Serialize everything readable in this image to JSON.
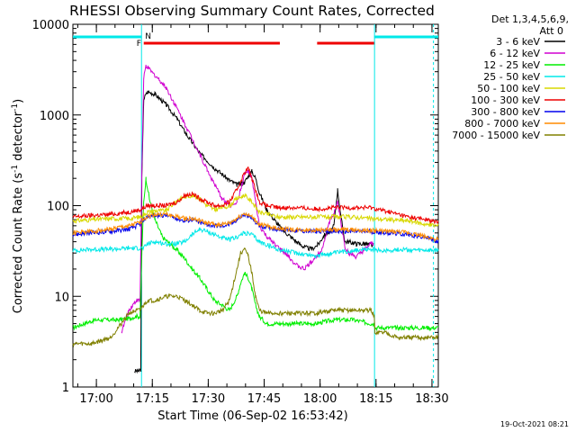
{
  "chart_data": {
    "type": "line",
    "title": "RHESSI Observing Summary Count Rates, Corrected",
    "xlabel": "Start Time (06-Sep-02 16:53:42)",
    "ylabel_main": "Corrected Count Rate (s",
    "ylabel_sup1": "-1",
    "ylabel_mid": " detector",
    "ylabel_sup2": "-1",
    "ylabel_end": ")",
    "x_ticks": [
      "17:00",
      "17:15",
      "17:30",
      "17:45",
      "18:00",
      "18:15",
      "18:30"
    ],
    "x_tick_minutes": [
      6.3,
      21.3,
      36.3,
      51.3,
      66.3,
      81.3,
      96.3
    ],
    "xlim_minutes": [
      0,
      98
    ],
    "y_scale": "log",
    "ylim": [
      1,
      10000
    ],
    "y_ticks": [
      {
        "value": 1,
        "label": "1"
      },
      {
        "value": 10,
        "label": "10"
      },
      {
        "value": 100,
        "label": "100"
      },
      {
        "value": 1000,
        "label": "1000"
      },
      {
        "value": 10000,
        "label": "10000"
      }
    ],
    "legend_header": [
      "Det 1,3,4,5,6,9,",
      "Att 0"
    ],
    "legend_position": "right",
    "timestamp": "19-Oct-2021 08:21",
    "attenuator_label": "N",
    "flare_label": "F",
    "cyan_bars": [
      [
        0,
        18.5
      ],
      [
        80.8,
        98
      ]
    ],
    "red_flare_bars": [
      [
        19,
        55.5
      ],
      [
        65.5,
        81
      ]
    ],
    "vertical_lines_minutes": [
      18.4,
      80.9,
      96.7
    ],
    "series": [
      {
        "name": "3 - 6 keV",
        "color": "#000000",
        "x": [
          0,
          16,
          16.5,
          17,
          17.7,
          18.2,
          18.5,
          19,
          20,
          22,
          25,
          28,
          30,
          34,
          38,
          42,
          44,
          46,
          47,
          48,
          49,
          50,
          52,
          54,
          56,
          58,
          60,
          62,
          64,
          66,
          67,
          68,
          69,
          70,
          71,
          72,
          73,
          74,
          76,
          78,
          80,
          80.7,
          80.9
        ],
        "y": [
          null,
          null,
          1.5,
          1.5,
          1.5,
          1.5,
          200,
          1500,
          1800,
          1700,
          1300,
          900,
          650,
          380,
          260,
          190,
          170,
          180,
          210,
          240,
          200,
          140,
          90,
          70,
          55,
          47,
          40,
          35,
          33,
          38,
          45,
          50,
          50,
          60,
          150,
          70,
          40,
          40,
          38,
          38,
          37,
          36,
          null
        ]
      },
      {
        "name": "6 - 12 keV",
        "color": "#d000d0",
        "x": [
          0,
          12.5,
          13,
          15,
          16,
          17,
          18,
          18.5,
          19,
          19.6,
          21,
          23,
          25,
          27,
          30,
          33,
          36,
          38,
          40,
          42,
          44,
          45,
          46,
          47,
          48,
          49,
          50,
          52,
          54,
          56,
          58,
          60,
          62,
          64,
          66,
          67,
          68,
          69,
          70,
          71,
          72,
          73,
          74,
          76,
          78,
          80,
          80.7,
          80.9
        ],
        "y": [
          null,
          null,
          4,
          7,
          8,
          9,
          9,
          250,
          2500,
          3500,
          3000,
          2500,
          2000,
          1400,
          800,
          450,
          250,
          170,
          120,
          100,
          110,
          150,
          220,
          240,
          200,
          110,
          60,
          45,
          38,
          32,
          27,
          22,
          20,
          24,
          30,
          35,
          50,
          70,
          80,
          110,
          60,
          35,
          30,
          27,
          32,
          38,
          38,
          null
        ]
      },
      {
        "name": "12 - 25 keV",
        "color": "#00ee00",
        "x": [
          0,
          3,
          6,
          9,
          12,
          15,
          17,
          18,
          18.5,
          19,
          19.6,
          20.5,
          22,
          24,
          26,
          28,
          30,
          32,
          34,
          36,
          38,
          40,
          42,
          44,
          45,
          46,
          47,
          48,
          49,
          50,
          52,
          55,
          60,
          65,
          70,
          75,
          80,
          80.8,
          81,
          84,
          87,
          90,
          95,
          98
        ],
        "y": [
          4.5,
          5,
          5.5,
          5.5,
          5.5,
          5.7,
          6,
          6,
          30,
          110,
          200,
          120,
          70,
          45,
          38,
          32,
          26,
          20,
          16,
          12,
          9,
          8,
          7,
          10,
          14,
          18,
          16,
          12,
          8,
          6,
          5,
          5,
          5,
          5,
          5.5,
          5.5,
          5,
          5,
          4.5,
          4.5,
          4.5,
          4.5,
          4.5,
          4.5
        ]
      },
      {
        "name": "25 - 50 keV",
        "color": "#00e8e8",
        "x": [
          0,
          5,
          10,
          15,
          18,
          19,
          20,
          22,
          25,
          28,
          30,
          32,
          34,
          36,
          38,
          40,
          42,
          44,
          46,
          48,
          50,
          55,
          60,
          65,
          70,
          75,
          80,
          80.8,
          81,
          84,
          88,
          92,
          96,
          98
        ],
        "y": [
          32,
          33,
          33,
          34,
          34,
          34,
          38,
          40,
          38,
          38,
          40,
          48,
          55,
          52,
          48,
          44,
          42,
          45,
          50,
          48,
          40,
          33,
          30,
          28,
          30,
          32,
          33,
          33,
          32,
          32,
          33,
          32,
          32,
          32
        ]
      },
      {
        "name": "50 - 100 keV",
        "color": "#d8d800",
        "x": [
          0,
          5,
          10,
          15,
          18,
          19,
          20,
          22,
          25,
          28,
          30,
          32,
          34,
          36,
          38,
          40,
          42,
          44,
          46,
          48,
          50,
          55,
          60,
          65,
          70,
          75,
          80,
          85,
          90,
          95,
          98
        ],
        "y": [
          68,
          70,
          72,
          72,
          75,
          80,
          85,
          88,
          88,
          115,
          125,
          130,
          120,
          100,
          90,
          95,
          100,
          120,
          130,
          110,
          85,
          75,
          75,
          75,
          75,
          75,
          72,
          70,
          68,
          62,
          60
        ]
      },
      {
        "name": "100 - 300 keV",
        "color": "#ee0000",
        "x": [
          0,
          5,
          10,
          15,
          18,
          19,
          20,
          22,
          25,
          28,
          30,
          32,
          34,
          36,
          38,
          40,
          42,
          44,
          46,
          47,
          48,
          49,
          50,
          52,
          55,
          60,
          65,
          70,
          75,
          80,
          85,
          90,
          95,
          98
        ],
        "y": [
          75,
          78,
          80,
          85,
          90,
          95,
          100,
          100,
          100,
          110,
          130,
          135,
          120,
          110,
          100,
          100,
          110,
          150,
          230,
          260,
          200,
          150,
          110,
          100,
          95,
          95,
          92,
          95,
          95,
          95,
          85,
          75,
          70,
          65
        ]
      },
      {
        "name": "300 - 800 keV",
        "color": "#0000ee",
        "x": [
          0,
          5,
          10,
          15,
          18,
          19,
          20,
          22,
          25,
          28,
          30,
          32,
          34,
          36,
          38,
          40,
          42,
          44,
          46,
          48,
          50,
          55,
          60,
          65,
          70,
          75,
          80,
          85,
          90,
          95,
          98
        ],
        "y": [
          48,
          50,
          52,
          55,
          62,
          70,
          75,
          78,
          78,
          72,
          68,
          70,
          65,
          62,
          60,
          60,
          62,
          70,
          80,
          72,
          60,
          55,
          53,
          52,
          52,
          52,
          52,
          50,
          48,
          44,
          40
        ]
      },
      {
        "name": "800 - 7000 keV",
        "color": "#ff8c00",
        "x": [
          0,
          5,
          10,
          15,
          18,
          19,
          20,
          22,
          25,
          28,
          30,
          32,
          34,
          36,
          38,
          40,
          42,
          44,
          46,
          48,
          50,
          55,
          60,
          65,
          70,
          75,
          80,
          85,
          90,
          95,
          98
        ],
        "y": [
          50,
          52,
          55,
          60,
          65,
          72,
          76,
          80,
          80,
          75,
          72,
          72,
          68,
          64,
          62,
          62,
          64,
          72,
          82,
          75,
          62,
          56,
          54,
          54,
          54,
          54,
          53,
          52,
          50,
          45,
          42
        ]
      },
      {
        "name": "7000 - 15000 keV",
        "color": "#808000",
        "x": [
          0,
          5,
          10,
          13,
          15,
          17,
          18,
          19,
          20,
          22,
          25,
          28,
          30,
          32,
          34,
          36,
          38,
          40,
          42,
          44,
          45,
          46,
          47,
          48,
          49,
          50,
          52,
          55,
          60,
          65,
          70,
          75,
          80,
          80.8,
          81,
          84,
          87,
          90,
          95,
          98
        ],
        "y": [
          3,
          3,
          3.5,
          5,
          6.5,
          7,
          7,
          8,
          9,
          9,
          10,
          10,
          9,
          8,
          7,
          6.5,
          6.5,
          7,
          9,
          20,
          30,
          33,
          28,
          18,
          10,
          7,
          6.5,
          6.5,
          6.5,
          6.5,
          7,
          7,
          7,
          6,
          4,
          4,
          3.5,
          3.5,
          3.5,
          3.5
        ]
      }
    ]
  }
}
